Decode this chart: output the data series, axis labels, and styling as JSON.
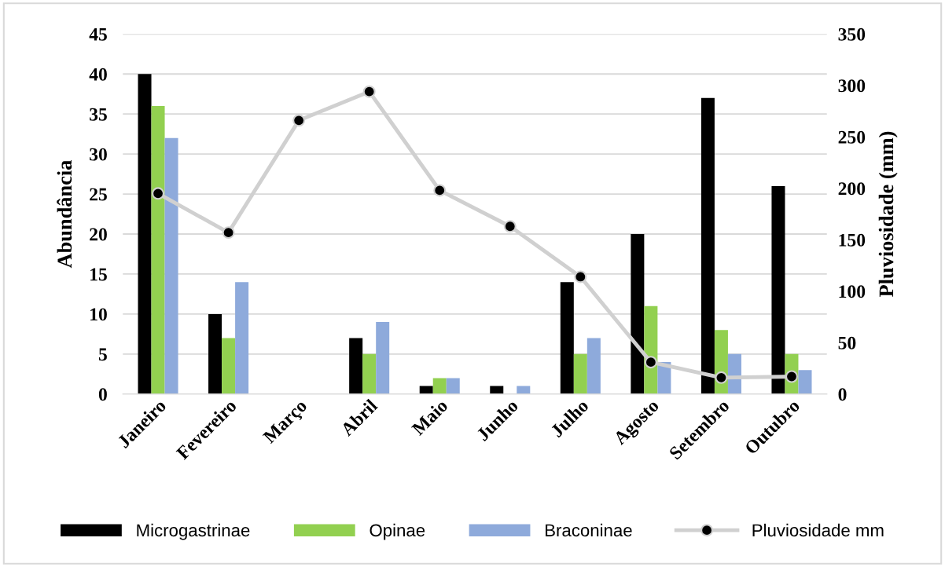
{
  "chart_data": {
    "type": "bar",
    "categories": [
      "Janeiro",
      "Fevereiro",
      "Março",
      "Abril",
      "Maio",
      "Junho",
      "Julho",
      "Agosto",
      "Setembro",
      "Outubro"
    ],
    "ylabel": "Abundância",
    "y2label": "Pluviosidade (mm)",
    "ylim": [
      0,
      45
    ],
    "yticks": [
      0,
      5,
      10,
      15,
      20,
      25,
      30,
      35,
      40,
      45
    ],
    "y2lim": [
      0,
      350
    ],
    "y2ticks": [
      0,
      50,
      100,
      150,
      200,
      250,
      300,
      350
    ],
    "grid": "y",
    "legend": "bottom",
    "series": [
      {
        "name": "Microgastrinae",
        "color": "#000000",
        "values": [
          40,
          10,
          0,
          7,
          1,
          1,
          14,
          20,
          37,
          26
        ]
      },
      {
        "name": "Opinae",
        "color": "#92d050",
        "values": [
          36,
          7,
          0,
          5,
          2,
          0,
          5,
          11,
          8,
          5
        ]
      },
      {
        "name": "Braconinae",
        "color": "#8eaadb",
        "values": [
          32,
          14,
          0,
          9,
          2,
          1,
          7,
          4,
          5,
          3
        ]
      },
      {
        "name": "Pluviosidade mm",
        "type": "line",
        "axis": "y2",
        "color": "#d0d0d0",
        "marker": "circle",
        "line_style": "solid",
        "values": [
          195,
          157,
          266,
          294,
          198,
          163,
          114,
          31,
          16,
          17
        ]
      }
    ]
  }
}
